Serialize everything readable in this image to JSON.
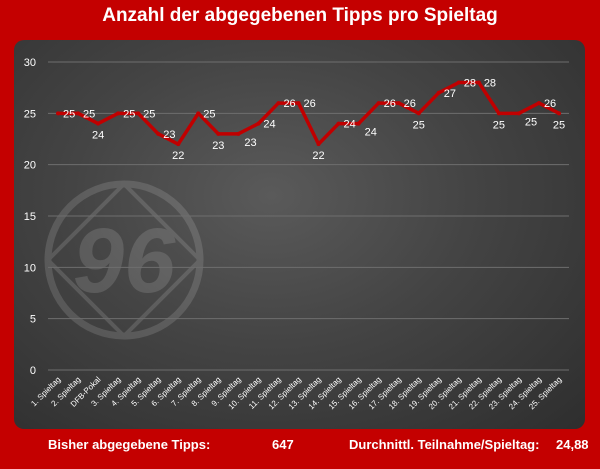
{
  "chart_data": {
    "type": "line",
    "title": "Anzahl der abgegebenen Tipps pro Spieltag",
    "categories": [
      "1. Spieltag",
      "2. Spieltag",
      "DFB-Pokal",
      "3. Spieltag",
      "4. Spieltag",
      "5. Spieltag",
      "6. Spieltag",
      "7. Spieltag",
      "8. Spieltag",
      "9. Spieltag",
      "10. Spieltag",
      "11. Spieltag",
      "12. Spieltag",
      "13. Spieltag",
      "14. Spieltag",
      "15. Spieltag",
      "16. Spieltag",
      "17. Spieltag",
      "18. Spieltag",
      "19. Spieltag",
      "20. Spieltag",
      "21. Spieltag",
      "22. Spieltag",
      "23. Spieltag",
      "24. Spieltag",
      "25. Spieltag"
    ],
    "values": [
      25,
      25,
      24,
      25,
      25,
      23,
      22,
      25,
      23,
      23,
      24,
      26,
      26,
      22,
      24,
      24,
      26,
      26,
      25,
      27,
      28,
      28,
      25,
      25,
      26,
      25
    ],
    "ylim": [
      0,
      30
    ],
    "yticks": [
      0,
      5,
      10,
      15,
      20,
      25,
      30
    ],
    "line_color": "#c00000",
    "grid": true
  },
  "watermark": "96",
  "footer": {
    "total_label": "Bisher abgegebene Tipps:",
    "total_value": "647",
    "avg_label": "Durchnittl. Teilnahme/Spieltag:",
    "avg_value": "24,88"
  }
}
